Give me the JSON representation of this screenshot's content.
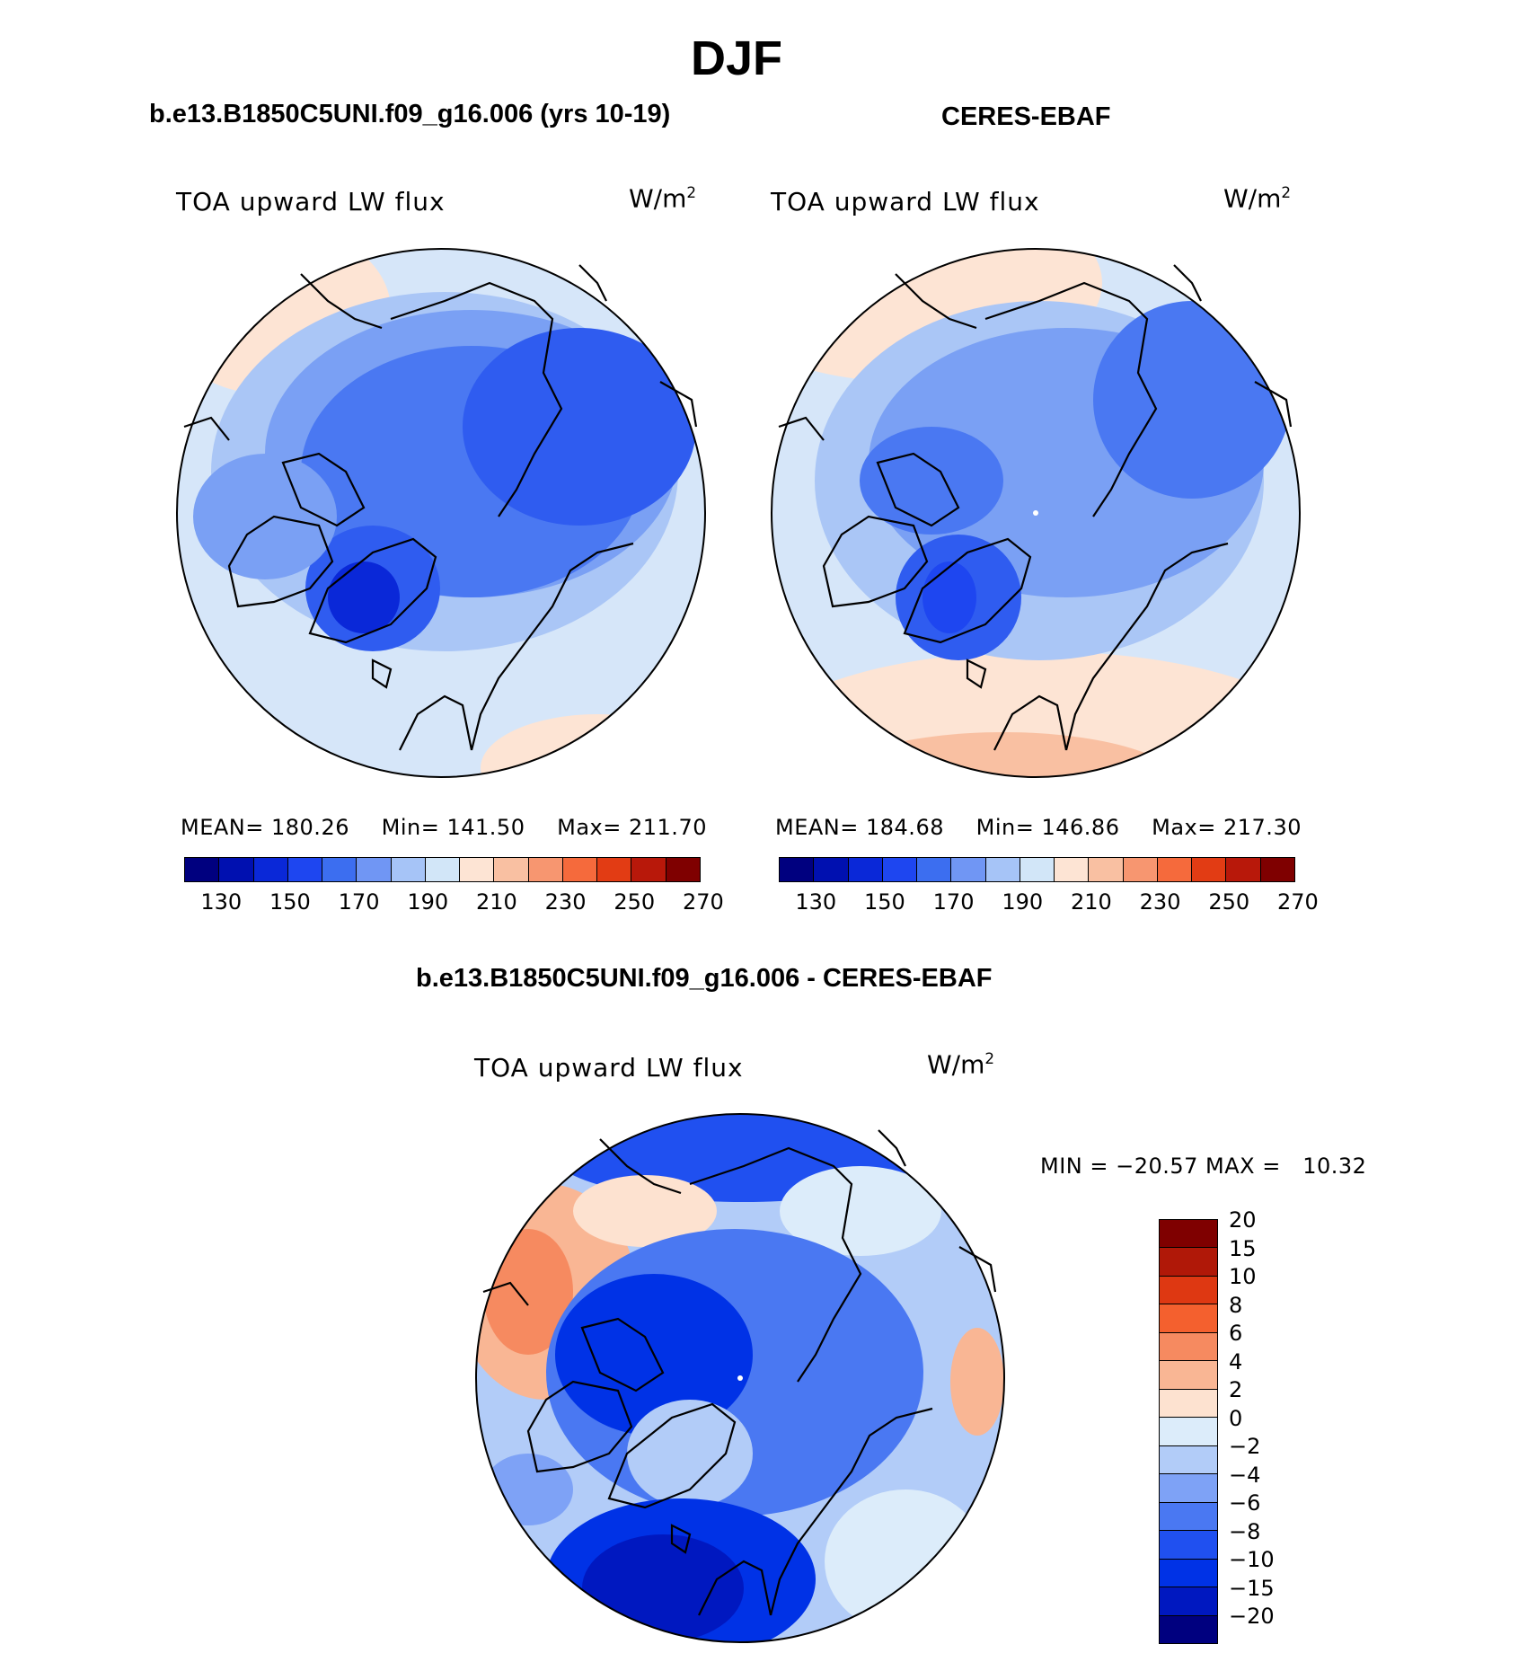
{
  "figure": {
    "season": "DJF"
  },
  "panels": {
    "model": {
      "title": "b.e13.B1850C5UNI.f09_g16.006 (yrs 10-19)",
      "variable": "TOA upward LW flux",
      "units_base": "W/m",
      "units_exp": "2",
      "stats": {
        "mean_label": "MEAN=",
        "mean": "180.26",
        "min_label": "Min=",
        "min": "141.50",
        "max_label": "Max=",
        "max": "211.70"
      }
    },
    "obs": {
      "title": "CERES-EBAF",
      "variable": "TOA upward LW flux",
      "units_base": "W/m",
      "units_exp": "2",
      "stats": {
        "mean_label": "MEAN=",
        "mean": "184.68",
        "min_label": "Min=",
        "min": "146.86",
        "max_label": "Max=",
        "max": "217.30"
      }
    },
    "diff": {
      "title": "b.e13.B1850C5UNI.f09_g16.006 - CERES-EBAF",
      "variable": "TOA upward LW flux",
      "units_base": "W/m",
      "units_exp": "2",
      "stats": {
        "text": "MIN = −20.57 MAX =   10.32"
      }
    }
  },
  "colorbars": {
    "absolute": {
      "colors": [
        "#00007f",
        "#0010b0",
        "#0a28d8",
        "#1e46f0",
        "#3c6ef0",
        "#7096f4",
        "#a6c4f7",
        "#d2e6f8",
        "#fde4d4",
        "#f9c0a2",
        "#f79670",
        "#f56a3c",
        "#e23c14",
        "#b8180a",
        "#7f0000"
      ],
      "tick_labels": [
        "130",
        "150",
        "170",
        "190",
        "210",
        "230",
        "250",
        "270"
      ]
    },
    "difference": {
      "colors": [
        "#00007f",
        "#0018c0",
        "#0032e6",
        "#2050f0",
        "#4a78f2",
        "#7ea2f6",
        "#b2ccf8",
        "#dcecfa",
        "#fde2d0",
        "#f9b694",
        "#f68a60",
        "#f4602e",
        "#de3812",
        "#b01808",
        "#7f0000"
      ],
      "tick_labels": [
        "−20",
        "−15",
        "−10",
        "−8",
        "−6",
        "−4",
        "−2",
        "0",
        "2",
        "4",
        "6",
        "8",
        "10",
        "15",
        "20"
      ]
    }
  }
}
